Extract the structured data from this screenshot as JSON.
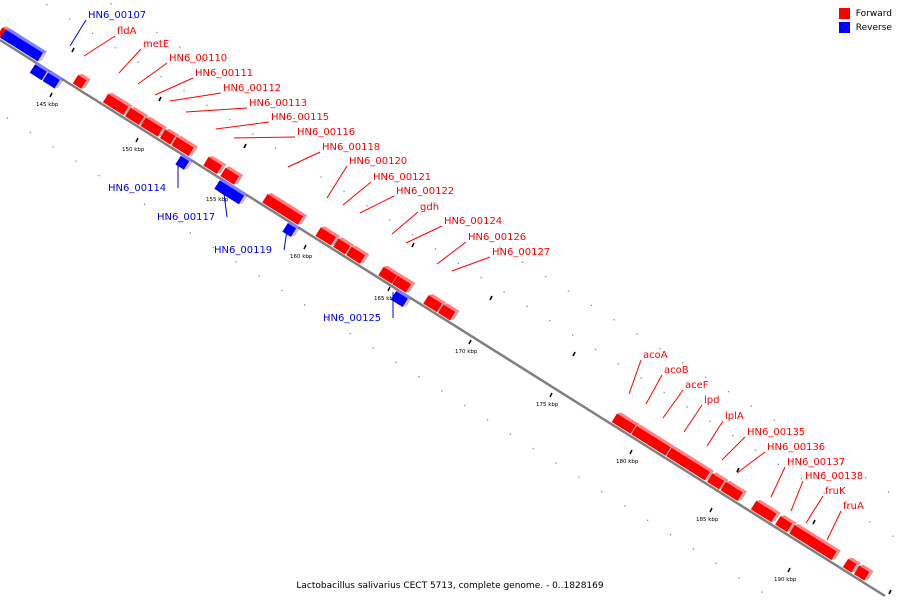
{
  "caption": "Lactobacillus salivarius CECT 5713, complete genome. - 0..1828169",
  "legend": [
    {
      "label": "Forward",
      "color": "#ff0000"
    },
    {
      "label": "Reverse",
      "color": "#0000ff"
    }
  ],
  "colors": {
    "forward": "#ff0000",
    "reverse": "#0000ff",
    "backbone": "#808080"
  },
  "ticks": [
    "145 kbp",
    "150 kbp",
    "155 kbp",
    "160 kbp",
    "165 kbp",
    "170 kbp",
    "175 kbp",
    "180 kbp",
    "185 kbp",
    "190 kbp"
  ],
  "genes": [
    {
      "name": "HN6_00107",
      "strand": "reverse"
    },
    {
      "name": "fldA",
      "strand": "forward"
    },
    {
      "name": "metE",
      "strand": "forward"
    },
    {
      "name": "HN6_00110",
      "strand": "forward"
    },
    {
      "name": "HN6_00111",
      "strand": "forward"
    },
    {
      "name": "HN6_00112",
      "strand": "forward"
    },
    {
      "name": "HN6_00113",
      "strand": "forward"
    },
    {
      "name": "HN6_00115",
      "strand": "forward"
    },
    {
      "name": "HN6_00116",
      "strand": "forward"
    },
    {
      "name": "HN6_00118",
      "strand": "forward"
    },
    {
      "name": "HN6_00120",
      "strand": "forward"
    },
    {
      "name": "HN6_00121",
      "strand": "forward"
    },
    {
      "name": "HN6_00122",
      "strand": "forward"
    },
    {
      "name": "gdh",
      "strand": "forward"
    },
    {
      "name": "HN6_00124",
      "strand": "forward"
    },
    {
      "name": "HN6_00126",
      "strand": "forward"
    },
    {
      "name": "HN6_00127",
      "strand": "forward"
    },
    {
      "name": "HN6_00114",
      "strand": "reverse"
    },
    {
      "name": "HN6_00117",
      "strand": "reverse"
    },
    {
      "name": "HN6_00119",
      "strand": "reverse"
    },
    {
      "name": "HN6_00125",
      "strand": "reverse"
    },
    {
      "name": "acoA",
      "strand": "forward"
    },
    {
      "name": "acoB",
      "strand": "forward"
    },
    {
      "name": "aceF",
      "strand": "forward"
    },
    {
      "name": "lpd",
      "strand": "forward"
    },
    {
      "name": "lplA",
      "strand": "forward"
    },
    {
      "name": "HN6_00135",
      "strand": "forward"
    },
    {
      "name": "HN6_00136",
      "strand": "forward"
    },
    {
      "name": "HN6_00137",
      "strand": "forward"
    },
    {
      "name": "HN6_00138",
      "strand": "forward"
    },
    {
      "name": "fruK",
      "strand": "forward"
    },
    {
      "name": "fruA",
      "strand": "forward"
    }
  ]
}
